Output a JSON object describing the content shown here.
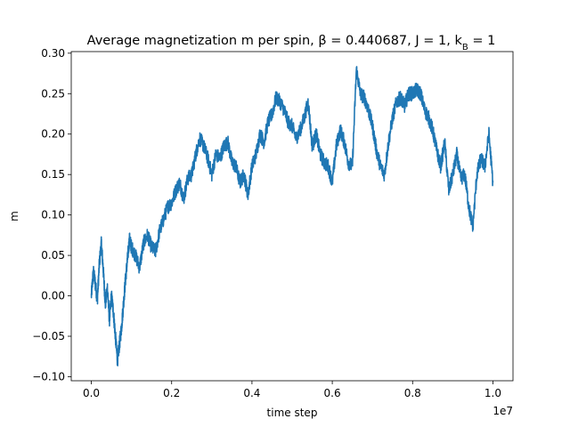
{
  "chart_data": {
    "type": "line",
    "title": "Average magnetization m per spin, β = 0.440687, J = 1, k",
    "title_subscript": "B",
    "title_tail": " = 1",
    "xlabel": "time step",
    "ylabel": "m",
    "x_offset_label": "1e7",
    "xlim": [
      -0.05,
      1.05
    ],
    "ylim": [
      -0.105,
      0.302
    ],
    "xticks": [
      0.0,
      0.2,
      0.4,
      0.6,
      0.8,
      1.0
    ],
    "xtick_labels": [
      "0.0",
      "0.2",
      "0.4",
      "0.6",
      "0.8",
      "1.0"
    ],
    "yticks": [
      -0.1,
      -0.05,
      0.0,
      0.05,
      0.1,
      0.15,
      0.2,
      0.25,
      0.3
    ],
    "ytick_labels": [
      "−0.10",
      "−0.05",
      "0.00",
      "0.05",
      "0.10",
      "0.15",
      "0.20",
      "0.25",
      "0.30"
    ],
    "grid": false,
    "legend": "none",
    "color": "#1f77b4",
    "series": [
      {
        "x": [
          0.0,
          0.005,
          0.01,
          0.015,
          0.02,
          0.025,
          0.03,
          0.035,
          0.04,
          0.045,
          0.05,
          0.055,
          0.06,
          0.065,
          0.07,
          0.075,
          0.08,
          0.085,
          0.09,
          0.095,
          0.1,
          0.11,
          0.12,
          0.13,
          0.14,
          0.15,
          0.16,
          0.17,
          0.18,
          0.19,
          0.2,
          0.21,
          0.22,
          0.23,
          0.24,
          0.25,
          0.26,
          0.27,
          0.28,
          0.29,
          0.3,
          0.31,
          0.32,
          0.33,
          0.34,
          0.35,
          0.36,
          0.37,
          0.38,
          0.39,
          0.4,
          0.41,
          0.42,
          0.43,
          0.44,
          0.45,
          0.46,
          0.47,
          0.48,
          0.49,
          0.5,
          0.51,
          0.52,
          0.53,
          0.54,
          0.55,
          0.56,
          0.57,
          0.58,
          0.59,
          0.6,
          0.61,
          0.62,
          0.63,
          0.64,
          0.65,
          0.66,
          0.67,
          0.68,
          0.69,
          0.7,
          0.71,
          0.72,
          0.73,
          0.74,
          0.75,
          0.76,
          0.77,
          0.78,
          0.79,
          0.8,
          0.81,
          0.82,
          0.83,
          0.84,
          0.85,
          0.86,
          0.87,
          0.88,
          0.89,
          0.9,
          0.91,
          0.92,
          0.93,
          0.94,
          0.95,
          0.96,
          0.97,
          0.98,
          0.99,
          1.0
        ],
        "y": [
          0.0,
          0.03,
          0.015,
          -0.005,
          0.04,
          0.065,
          0.03,
          -0.01,
          0.01,
          -0.03,
          0.0,
          -0.02,
          -0.05,
          -0.08,
          -0.06,
          -0.04,
          -0.01,
          0.02,
          0.045,
          0.07,
          0.06,
          0.05,
          0.035,
          0.065,
          0.075,
          0.06,
          0.055,
          0.08,
          0.095,
          0.11,
          0.115,
          0.13,
          0.14,
          0.12,
          0.145,
          0.15,
          0.175,
          0.195,
          0.185,
          0.17,
          0.15,
          0.175,
          0.17,
          0.185,
          0.19,
          0.165,
          0.16,
          0.14,
          0.15,
          0.125,
          0.16,
          0.175,
          0.2,
          0.19,
          0.215,
          0.225,
          0.245,
          0.24,
          0.23,
          0.215,
          0.21,
          0.195,
          0.205,
          0.22,
          0.24,
          0.185,
          0.2,
          0.175,
          0.165,
          0.16,
          0.14,
          0.185,
          0.205,
          0.19,
          0.165,
          0.16,
          0.28,
          0.25,
          0.245,
          0.23,
          0.21,
          0.18,
          0.16,
          0.15,
          0.19,
          0.22,
          0.24,
          0.245,
          0.235,
          0.25,
          0.25,
          0.255,
          0.25,
          0.23,
          0.22,
          0.205,
          0.18,
          0.16,
          0.19,
          0.13,
          0.15,
          0.175,
          0.145,
          0.15,
          0.11,
          0.085,
          0.15,
          0.17,
          0.16,
          0.2,
          0.14
        ]
      }
    ]
  }
}
